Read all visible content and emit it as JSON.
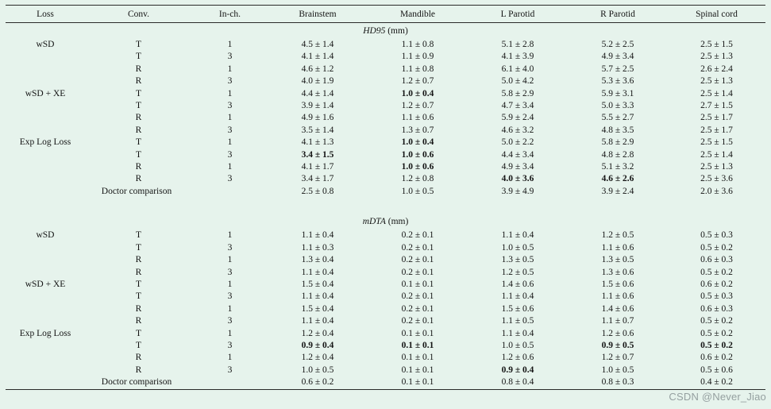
{
  "watermark": {
    "text": "CSDN @Never_Jiao"
  },
  "table": {
    "columns": [
      "Loss",
      "Conv.",
      "In-ch.",
      "Brainstem",
      "Mandible",
      "L Parotid",
      "R Parotid",
      "Spinal cord"
    ],
    "sections": [
      {
        "title_italic": "HD95",
        "title_rest": " (mm)",
        "rows": [
          {
            "cells": [
              "wSD",
              "T",
              "1",
              "4.5 ± 1.4",
              "1.1 ± 0.8",
              "5.1 ± 2.8",
              "5.2 ± 2.5",
              "2.5 ± 1.5"
            ],
            "bold": []
          },
          {
            "cells": [
              "",
              "T",
              "3",
              "4.1 ± 1.4",
              "1.1 ± 0.9",
              "4.1 ± 3.9",
              "4.9 ± 3.4",
              "2.5 ± 1.3"
            ],
            "bold": []
          },
          {
            "cells": [
              "",
              "R",
              "1",
              "4.6 ± 1.2",
              "1.1 ± 0.8",
              "6.1 ± 4.0",
              "5.7 ± 2.5",
              "2.6 ± 2.4"
            ],
            "bold": []
          },
          {
            "cells": [
              "",
              "R",
              "3",
              "4.0 ± 1.9",
              "1.2 ± 0.7",
              "5.0 ± 4.2",
              "5.3 ± 3.6",
              "2.5 ± 1.3"
            ],
            "bold": []
          },
          {
            "cells": [
              "wSD + XE",
              "T",
              "1",
              "4.4 ± 1.4",
              "1.0 ± 0.4",
              "5.8 ± 2.9",
              "5.9 ± 3.1",
              "2.5 ± 1.4"
            ],
            "bold": [
              4
            ]
          },
          {
            "cells": [
              "",
              "T",
              "3",
              "3.9 ± 1.4",
              "1.2 ± 0.7",
              "4.7 ± 3.4",
              "5.0 ± 3.3",
              "2.7 ± 1.5"
            ],
            "bold": []
          },
          {
            "cells": [
              "",
              "R",
              "1",
              "4.9 ± 1.6",
              "1.1 ± 0.6",
              "5.9 ± 2.4",
              "5.5 ± 2.7",
              "2.5 ± 1.7"
            ],
            "bold": []
          },
          {
            "cells": [
              "",
              "R",
              "3",
              "3.5 ± 1.4",
              "1.3 ± 0.7",
              "4.6 ± 3.2",
              "4.8 ± 3.5",
              "2.5 ± 1.7"
            ],
            "bold": []
          },
          {
            "cells": [
              "Exp Log Loss",
              "T",
              "1",
              "4.1 ± 1.3",
              "1.0 ± 0.4",
              "5.0 ± 2.2",
              "5.8 ± 2.9",
              "2.5 ± 1.5"
            ],
            "bold": [
              4
            ]
          },
          {
            "cells": [
              "",
              "T",
              "3",
              "3.4 ± 1.5",
              "1.0 ± 0.6",
              "4.4 ± 3.4",
              "4.8 ± 2.8",
              "2.5 ± 1.4"
            ],
            "bold": [
              3,
              4
            ]
          },
          {
            "cells": [
              "",
              "R",
              "1",
              "4.1 ± 1.7",
              "1.0 ± 0.6",
              "4.9 ± 3.4",
              "5.1 ± 3.2",
              "2.5 ± 1.3"
            ],
            "bold": [
              4
            ]
          },
          {
            "cells": [
              "",
              "R",
              "3",
              "3.4 ± 1.7",
              "1.2 ± 0.8",
              "4.0 ± 3.6",
              "4.6 ± 2.6",
              "2.5 ± 3.6"
            ],
            "bold": [
              5,
              6
            ]
          }
        ],
        "comparison": {
          "label": "Doctor comparison",
          "cells": [
            "2.5 ± 0.8",
            "1.0 ± 0.5",
            "3.9 ± 4.9",
            "3.9 ± 2.4",
            "2.0 ± 3.6"
          ]
        }
      },
      {
        "title_italic": "mDTA",
        "title_rest": " (mm)",
        "rows": [
          {
            "cells": [
              "wSD",
              "T",
              "1",
              "1.1 ± 0.4",
              "0.2 ± 0.1",
              "1.1 ± 0.4",
              "1.2 ± 0.5",
              "0.5 ± 0.3"
            ],
            "bold": []
          },
          {
            "cells": [
              "",
              "T",
              "3",
              "1.1 ± 0.3",
              "0.2 ± 0.1",
              "1.0 ± 0.5",
              "1.1 ± 0.6",
              "0.5 ± 0.2"
            ],
            "bold": []
          },
          {
            "cells": [
              "",
              "R",
              "1",
              "1.3 ± 0.4",
              "0.2 ± 0.1",
              "1.3 ± 0.5",
              "1.3 ± 0.5",
              "0.6 ± 0.3"
            ],
            "bold": []
          },
          {
            "cells": [
              "",
              "R",
              "3",
              "1.1 ± 0.4",
              "0.2 ± 0.1",
              "1.2 ± 0.5",
              "1.3 ± 0.6",
              "0.5 ± 0.2"
            ],
            "bold": []
          },
          {
            "cells": [
              "wSD + XE",
              "T",
              "1",
              "1.5 ± 0.4",
              "0.1 ± 0.1",
              "1.4 ± 0.6",
              "1.5 ± 0.6",
              "0.6 ± 0.2"
            ],
            "bold": []
          },
          {
            "cells": [
              "",
              "T",
              "3",
              "1.1 ± 0.4",
              "0.2 ± 0.1",
              "1.1 ± 0.4",
              "1.1 ± 0.6",
              "0.5 ± 0.3"
            ],
            "bold": []
          },
          {
            "cells": [
              "",
              "R",
              "1",
              "1.5 ± 0.4",
              "0.2 ± 0.1",
              "1.5 ± 0.6",
              "1.4 ± 0.6",
              "0.6 ± 0.3"
            ],
            "bold": []
          },
          {
            "cells": [
              "",
              "R",
              "3",
              "1.1 ± 0.4",
              "0.2 ± 0.1",
              "1.1 ± 0.5",
              "1.1 ± 0.7",
              "0.5 ± 0.2"
            ],
            "bold": []
          },
          {
            "cells": [
              "Exp Log Loss",
              "T",
              "1",
              "1.2 ± 0.4",
              "0.1 ± 0.1",
              "1.1 ± 0.4",
              "1.2 ± 0.6",
              "0.5 ± 0.2"
            ],
            "bold": []
          },
          {
            "cells": [
              "",
              "T",
              "3",
              "0.9 ± 0.4",
              "0.1 ± 0.1",
              "1.0 ± 0.5",
              "0.9 ± 0.5",
              "0.5 ± 0.2"
            ],
            "bold": [
              3,
              4,
              6,
              7
            ]
          },
          {
            "cells": [
              "",
              "R",
              "1",
              "1.2 ± 0.4",
              "0.1 ± 0.1",
              "1.2 ± 0.6",
              "1.2 ± 0.7",
              "0.6 ± 0.2"
            ],
            "bold": []
          },
          {
            "cells": [
              "",
              "R",
              "3",
              "1.0 ± 0.5",
              "0.1 ± 0.1",
              "0.9 ± 0.4",
              "1.0 ± 0.5",
              "0.5 ± 0.6"
            ],
            "bold": [
              5
            ]
          }
        ],
        "comparison": {
          "label": "Doctor comparison",
          "cells": [
            "0.6 ± 0.2",
            "0.1 ± 0.1",
            "0.8 ± 0.4",
            "0.8 ± 0.3",
            "0.4 ± 0.2"
          ]
        }
      }
    ]
  }
}
